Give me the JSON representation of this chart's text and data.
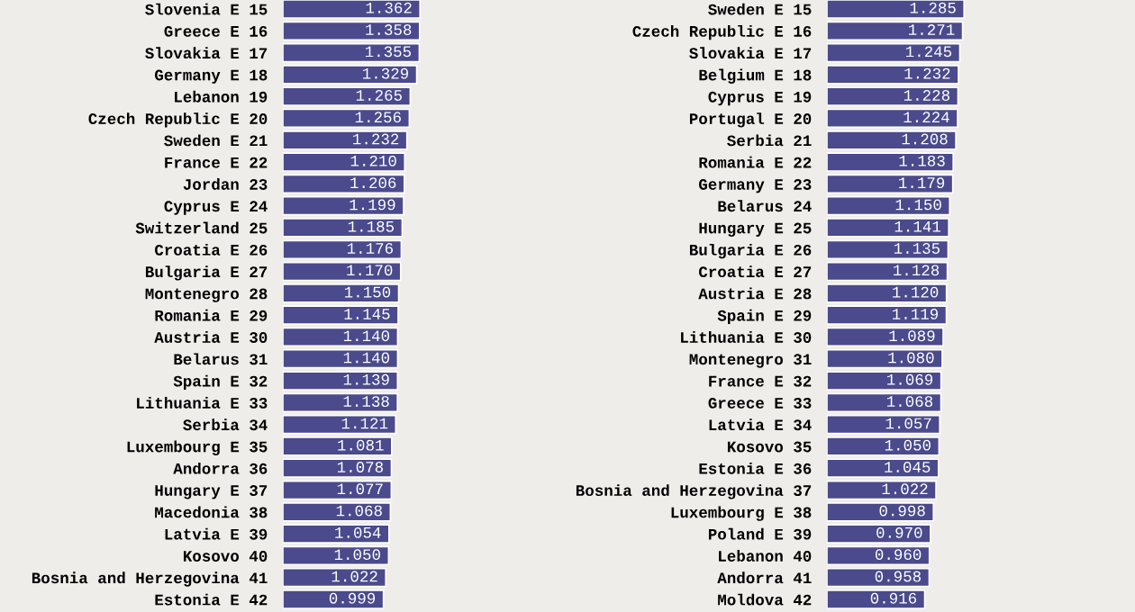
{
  "chart_data": [
    {
      "type": "bar",
      "orientation": "horizontal",
      "color": "#4a4a8c",
      "categories": [
        "Slovenia E 15",
        "Greece E 16",
        "Slovakia E 17",
        "Germany E 18",
        "Lebanon 19",
        "Czech Republic E 20",
        "Sweden E 21",
        "France E 22",
        "Jordan 23",
        "Cyprus E 24",
        "Switzerland 25",
        "Croatia E 26",
        "Bulgaria E 27",
        "Montenegro 28",
        "Romania E 29",
        "Austria E 30",
        "Belarus 31",
        "Spain E 32",
        "Lithuania E 33",
        "Serbia 34",
        "Luxembourg E 35",
        "Andorra 36",
        "Hungary E 37",
        "Macedonia 38",
        "Latvia E 39",
        "Kosovo 40",
        "Bosnia and Herzegovina 41",
        "Estonia E 42"
      ],
      "values": [
        1.362,
        1.358,
        1.355,
        1.329,
        1.265,
        1.256,
        1.232,
        1.21,
        1.206,
        1.199,
        1.185,
        1.176,
        1.17,
        1.15,
        1.145,
        1.14,
        1.14,
        1.139,
        1.138,
        1.121,
        1.081,
        1.078,
        1.077,
        1.068,
        1.054,
        1.05,
        1.022,
        0.999
      ],
      "value_labels": [
        "1.362",
        "1.358",
        "1.355",
        "1.329",
        "1.265",
        "1.256",
        "1.232",
        "1.210",
        "1.206",
        "1.199",
        "1.185",
        "1.176",
        "1.170",
        "1.150",
        "1.145",
        "1.140",
        "1.140",
        "1.139",
        "1.138",
        "1.121",
        "1.081",
        "1.078",
        "1.077",
        "1.068",
        "1.054",
        "1.050",
        "1.022",
        "0.999"
      ]
    },
    {
      "type": "bar",
      "orientation": "horizontal",
      "color": "#4a4a8c",
      "categories": [
        "Sweden E 15",
        "Czech Republic E 16",
        "Slovakia E 17",
        "Belgium E 18",
        "Cyprus E 19",
        "Portugal E 20",
        "Serbia 21",
        "Romania E 22",
        "Germany E 23",
        "Belarus 24",
        "Hungary E 25",
        "Bulgaria E 26",
        "Croatia E 27",
        "Austria E 28",
        "Spain E 29",
        "Lithuania E 30",
        "Montenegro 31",
        "France E 32",
        "Greece E 33",
        "Latvia E 34",
        "Kosovo 35",
        "Estonia E 36",
        "Bosnia and Herzegovina 37",
        "Luxembourg E 38",
        "Poland E 39",
        "Lebanon 40",
        "Andorra 41",
        "Moldova 42"
      ],
      "values": [
        1.285,
        1.271,
        1.245,
        1.232,
        1.228,
        1.224,
        1.208,
        1.183,
        1.179,
        1.15,
        1.141,
        1.135,
        1.128,
        1.12,
        1.119,
        1.089,
        1.08,
        1.069,
        1.068,
        1.057,
        1.05,
        1.045,
        1.022,
        0.998,
        0.97,
        0.96,
        0.958,
        0.916
      ],
      "value_labels": [
        "1.285",
        "1.271",
        "1.245",
        "1.232",
        "1.228",
        "1.224",
        "1.208",
        "1.183",
        "1.179",
        "1.150",
        "1.141",
        "1.135",
        "1.128",
        "1.120",
        "1.119",
        "1.089",
        "1.080",
        "1.069",
        "1.068",
        "1.057",
        "1.050",
        "1.045",
        "1.022",
        "0.998",
        "0.970",
        "0.960",
        "0.958",
        "0.916"
      ]
    }
  ]
}
